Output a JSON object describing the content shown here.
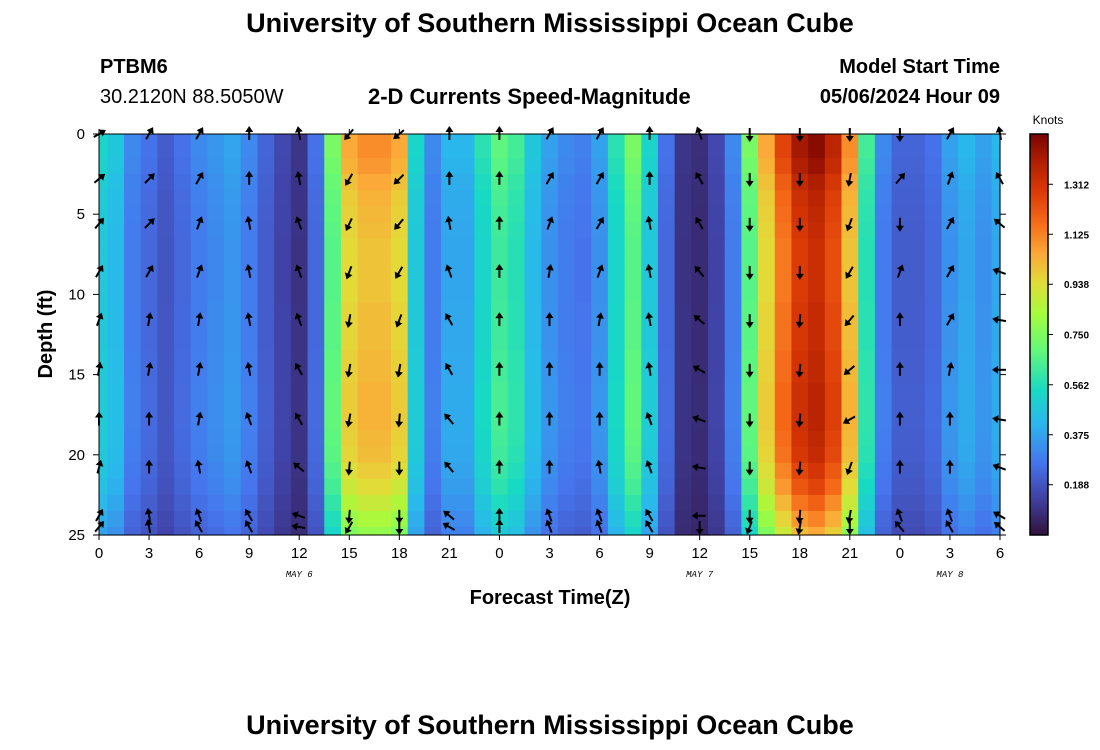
{
  "header": {
    "title": "University of Southern Mississippi Ocean Cube",
    "station": "PTBM6",
    "coords": "30.2120N  88.5050W",
    "subtitle": "2-D Currents Speed-Magnitude",
    "model_label": "Model Start Time",
    "model_time": "05/06/2024 Hour 09"
  },
  "footer": {
    "title": "University of Southern Mississippi Ocean Cube"
  },
  "colorbar": {
    "unit": "Knots",
    "labels": [
      "1.312",
      "1.125",
      "0.938",
      "0.750",
      "0.562",
      "0.375",
      "0.188"
    ],
    "values": [
      1.312,
      1.125,
      0.938,
      0.75,
      0.562,
      0.375,
      0.188
    ],
    "min": 0.0,
    "max": 1.5
  },
  "chart_data": {
    "type": "heatmap",
    "title": "2-D Currents Speed-Magnitude",
    "xlabel": "Forecast Time(Z)",
    "ylabel": "Depth (ft)",
    "x_range": [
      0,
      54
    ],
    "y_range": [
      0,
      25
    ],
    "x_tick_labels": [
      "0",
      "3",
      "6",
      "9",
      "12",
      "15",
      "18",
      "21",
      "0",
      "3",
      "6",
      "9",
      "12",
      "15",
      "18",
      "21",
      "0",
      "3",
      "6"
    ],
    "y_tick_labels": [
      "0",
      "5",
      "10",
      "15",
      "20",
      "25"
    ],
    "date_labels": [
      {
        "hour": 12,
        "text": "MAY 6"
      },
      {
        "hour": 36,
        "text": "MAY 7"
      },
      {
        "hour": 51,
        "text": "MAY 8"
      }
    ],
    "speed_profile_knots": [
      0.5,
      0.45,
      0.3,
      0.25,
      0.2,
      0.25,
      0.3,
      0.33,
      0.36,
      0.3,
      0.22,
      0.15,
      0.1,
      0.25,
      0.7,
      1.0,
      1.05,
      1.05,
      1.0,
      0.5,
      0.3,
      0.4,
      0.4,
      0.55,
      0.65,
      0.6,
      0.45,
      0.35,
      0.3,
      0.28,
      0.35,
      0.55,
      0.7,
      0.5,
      0.25,
      0.1,
      0.08,
      0.15,
      0.3,
      0.7,
      1.0,
      1.2,
      1.35,
      1.4,
      1.3,
      1.05,
      0.6,
      0.3,
      0.22,
      0.22,
      0.25,
      0.35,
      0.4,
      0.35,
      0.4
    ],
    "depth_modifier": [
      1.05,
      1.05,
      1.03,
      1.0,
      0.98,
      0.97,
      0.96,
      0.95,
      0.95,
      0.95,
      0.95,
      0.96,
      0.96,
      0.96,
      0.97,
      0.97,
      0.98,
      0.98,
      0.98,
      0.97,
      0.96,
      0.93,
      0.9,
      0.85,
      0.8,
      0.75
    ],
    "arrow_columns": [
      {
        "hour": 0,
        "angles": [
          -30,
          -40,
          -50,
          -60,
          -70,
          -80,
          -90,
          -75,
          -60,
          -50
        ]
      },
      {
        "hour": 3,
        "angles": [
          -60,
          -45,
          -45,
          -60,
          -80,
          -80,
          -90,
          -90,
          -100,
          -100
        ]
      },
      {
        "hour": 6,
        "angles": [
          -60,
          -60,
          -70,
          -70,
          -80,
          -80,
          -80,
          -100,
          -110,
          -120
        ]
      },
      {
        "hour": 9,
        "angles": [
          -90,
          -90,
          -100,
          -100,
          -100,
          -100,
          -110,
          -110,
          -120,
          -120
        ]
      },
      {
        "hour": 12,
        "angles": [
          -100,
          -100,
          -110,
          -110,
          -110,
          -120,
          -120,
          -140,
          -160,
          -170
        ]
      },
      {
        "hour": 15,
        "angles": [
          130,
          120,
          115,
          110,
          100,
          100,
          100,
          95,
          95,
          120
        ]
      },
      {
        "hour": 18,
        "angles": [
          140,
          135,
          130,
          120,
          110,
          100,
          95,
          90,
          90,
          90
        ]
      },
      {
        "hour": 21,
        "angles": [
          -90,
          -90,
          -100,
          -110,
          -120,
          -120,
          -130,
          -130,
          -140,
          -150
        ]
      },
      {
        "hour": 24,
        "angles": [
          -90,
          -90,
          -90,
          -90,
          -90,
          -90,
          -90,
          -90,
          -90,
          -90
        ]
      },
      {
        "hour": 27,
        "angles": [
          -60,
          -60,
          -70,
          -80,
          -90,
          -90,
          -90,
          -90,
          -110,
          -110
        ]
      },
      {
        "hour": 30,
        "angles": [
          -60,
          -60,
          -60,
          -70,
          -80,
          -90,
          -90,
          -100,
          -110,
          -110
        ]
      },
      {
        "hour": 33,
        "angles": [
          -90,
          -90,
          -100,
          -100,
          -100,
          -100,
          -110,
          -110,
          -120,
          -120
        ]
      },
      {
        "hour": 36,
        "angles": [
          -110,
          -120,
          -120,
          -130,
          -140,
          -150,
          -160,
          -170,
          180,
          90
        ]
      },
      {
        "hour": 39,
        "angles": [
          90,
          90,
          90,
          90,
          90,
          90,
          90,
          90,
          90,
          110
        ]
      },
      {
        "hour": 42,
        "angles": [
          90,
          90,
          90,
          90,
          95,
          95,
          95,
          95,
          95,
          100
        ]
      },
      {
        "hour": 45,
        "angles": [
          90,
          100,
          110,
          120,
          130,
          140,
          150,
          110,
          100,
          90
        ]
      },
      {
        "hour": 48,
        "angles": [
          90,
          -50,
          90,
          -70,
          -90,
          -90,
          -90,
          -90,
          -110,
          -130
        ]
      },
      {
        "hour": 51,
        "angles": [
          -60,
          -70,
          -60,
          -60,
          -60,
          -80,
          -90,
          -90,
          -110,
          -120
        ]
      },
      {
        "hour": 54,
        "angles": [
          -100,
          -120,
          -140,
          -160,
          -170,
          -180,
          -170,
          -160,
          -150,
          -140
        ]
      }
    ],
    "arrow_depths": [
      0,
      2.8,
      5.6,
      8.6,
      11.6,
      14.7,
      17.8,
      20.8,
      23.8,
      24.5
    ]
  }
}
